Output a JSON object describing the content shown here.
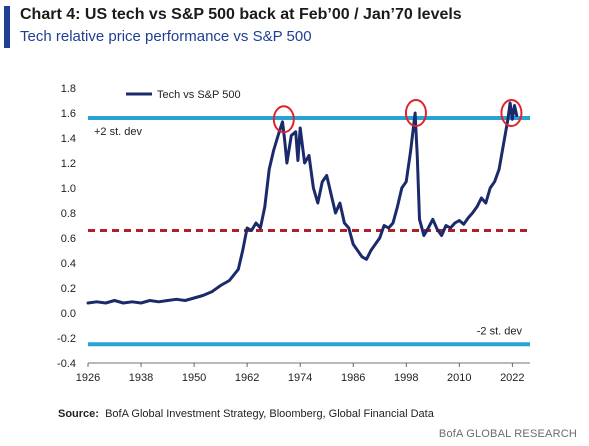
{
  "header": {
    "title": "Chart 4: US tech vs S&P 500 back at Feb’00 / Jan’70 levels",
    "subtitle": "Tech relative price performance vs S&P 500"
  },
  "chart_data": {
    "type": "line",
    "series": [
      {
        "name": "Tech vs S&P 500",
        "color": "#1b2a6b",
        "x": [
          1926,
          1928,
          1930,
          1932,
          1934,
          1936,
          1938,
          1940,
          1942,
          1944,
          1946,
          1948,
          1950,
          1952,
          1954,
          1956,
          1958,
          1960,
          1961,
          1962,
          1963,
          1964,
          1965,
          1966,
          1967,
          1968,
          1969,
          1970,
          1970.5,
          1971,
          1972,
          1973,
          1973.5,
          1974,
          1975,
          1976,
          1977,
          1978,
          1979,
          1980,
          1981,
          1982,
          1983,
          1984,
          1985,
          1986,
          1987,
          1988,
          1989,
          1990,
          1991,
          1992,
          1993,
          1994,
          1995,
          1996,
          1997,
          1998,
          1999,
          2000,
          2000.5,
          2001,
          2002,
          2003,
          2004,
          2005,
          2006,
          2007,
          2008,
          2009,
          2010,
          2011,
          2012,
          2013,
          2014,
          2015,
          2016,
          2017,
          2018,
          2019,
          2020,
          2021,
          2021.5,
          2022,
          2022.5,
          2023
        ],
        "y": [
          0.08,
          0.09,
          0.08,
          0.1,
          0.08,
          0.09,
          0.08,
          0.1,
          0.09,
          0.1,
          0.11,
          0.1,
          0.12,
          0.14,
          0.17,
          0.22,
          0.26,
          0.35,
          0.5,
          0.68,
          0.66,
          0.72,
          0.68,
          0.85,
          1.15,
          1.3,
          1.42,
          1.53,
          1.38,
          1.2,
          1.42,
          1.45,
          1.22,
          1.48,
          1.2,
          1.26,
          1.0,
          0.88,
          1.05,
          1.1,
          0.95,
          0.8,
          0.88,
          0.72,
          0.68,
          0.55,
          0.5,
          0.45,
          0.43,
          0.5,
          0.55,
          0.6,
          0.7,
          0.68,
          0.72,
          0.85,
          1.0,
          1.05,
          1.3,
          1.6,
          1.25,
          0.75,
          0.62,
          0.68,
          0.75,
          0.67,
          0.62,
          0.7,
          0.68,
          0.72,
          0.74,
          0.71,
          0.76,
          0.8,
          0.85,
          0.92,
          0.88,
          1.0,
          1.05,
          1.15,
          1.35,
          1.55,
          1.68,
          1.55,
          1.66,
          1.58
        ]
      }
    ],
    "reference_lines": [
      {
        "y": 1.56,
        "label": "+2 st. dev",
        "color": "#29a3d4",
        "style": "solid"
      },
      {
        "y": 0.66,
        "label": "",
        "color": "#b0202a",
        "style": "dashed"
      },
      {
        "y": -0.25,
        "label": "-2 st. dev",
        "color": "#29a3d4",
        "style": "solid"
      }
    ],
    "highlight_circles": [
      {
        "x": 1970.3,
        "y": 1.55,
        "color": "#e0242b"
      },
      {
        "x": 2000.2,
        "y": 1.6,
        "color": "#e0242b"
      },
      {
        "x": 2021.8,
        "y": 1.6,
        "color": "#e0242b"
      }
    ],
    "xlim": [
      1926,
      2026
    ],
    "ylim": [
      -0.4,
      1.8
    ],
    "x_ticks": [
      1926,
      1938,
      1950,
      1962,
      1974,
      1986,
      1998,
      2010,
      2022
    ],
    "y_ticks": [
      -0.4,
      -0.2,
      0.0,
      0.2,
      0.4,
      0.6,
      0.8,
      1.0,
      1.2,
      1.4,
      1.6,
      1.8
    ],
    "y_tick_labels": [
      "-0.4",
      "-0.2",
      "0.0",
      "0.2",
      "0.4",
      "0.6",
      "0.8",
      "1.0",
      "1.2",
      "1.4",
      "1.6",
      "1.8"
    ],
    "legend_position": "top-left",
    "grid": false
  },
  "footer": {
    "source_label": "Source:",
    "source_text": "BofA Global Investment Strategy, Bloomberg, Global Financial Data",
    "brand": "BofA GLOBAL RESEARCH"
  }
}
